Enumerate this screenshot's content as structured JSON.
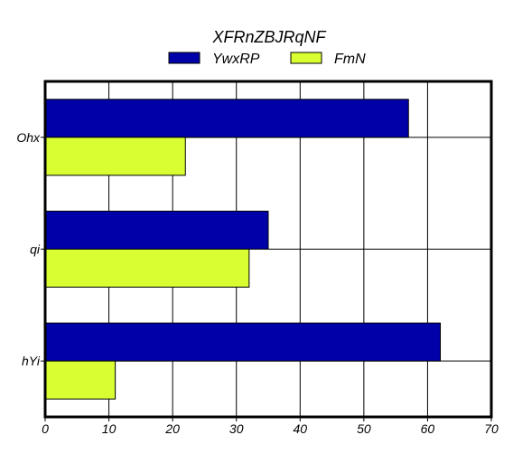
{
  "chart_data": {
    "type": "bar",
    "orientation": "horizontal",
    "title": "XFRnZBJRqNF",
    "categories": [
      "Ohx",
      "qi",
      "hYi"
    ],
    "series": [
      {
        "name": "YwxRP",
        "values": [
          57,
          35,
          62
        ],
        "color": "#0000a8"
      },
      {
        "name": "FmN",
        "values": [
          22,
          32,
          11
        ],
        "color": "#d9ff33"
      }
    ],
    "xlim": [
      0,
      70
    ],
    "xticks": [
      0,
      10,
      20,
      30,
      40,
      50,
      60,
      70
    ],
    "grid": true,
    "legend_position": "top"
  }
}
